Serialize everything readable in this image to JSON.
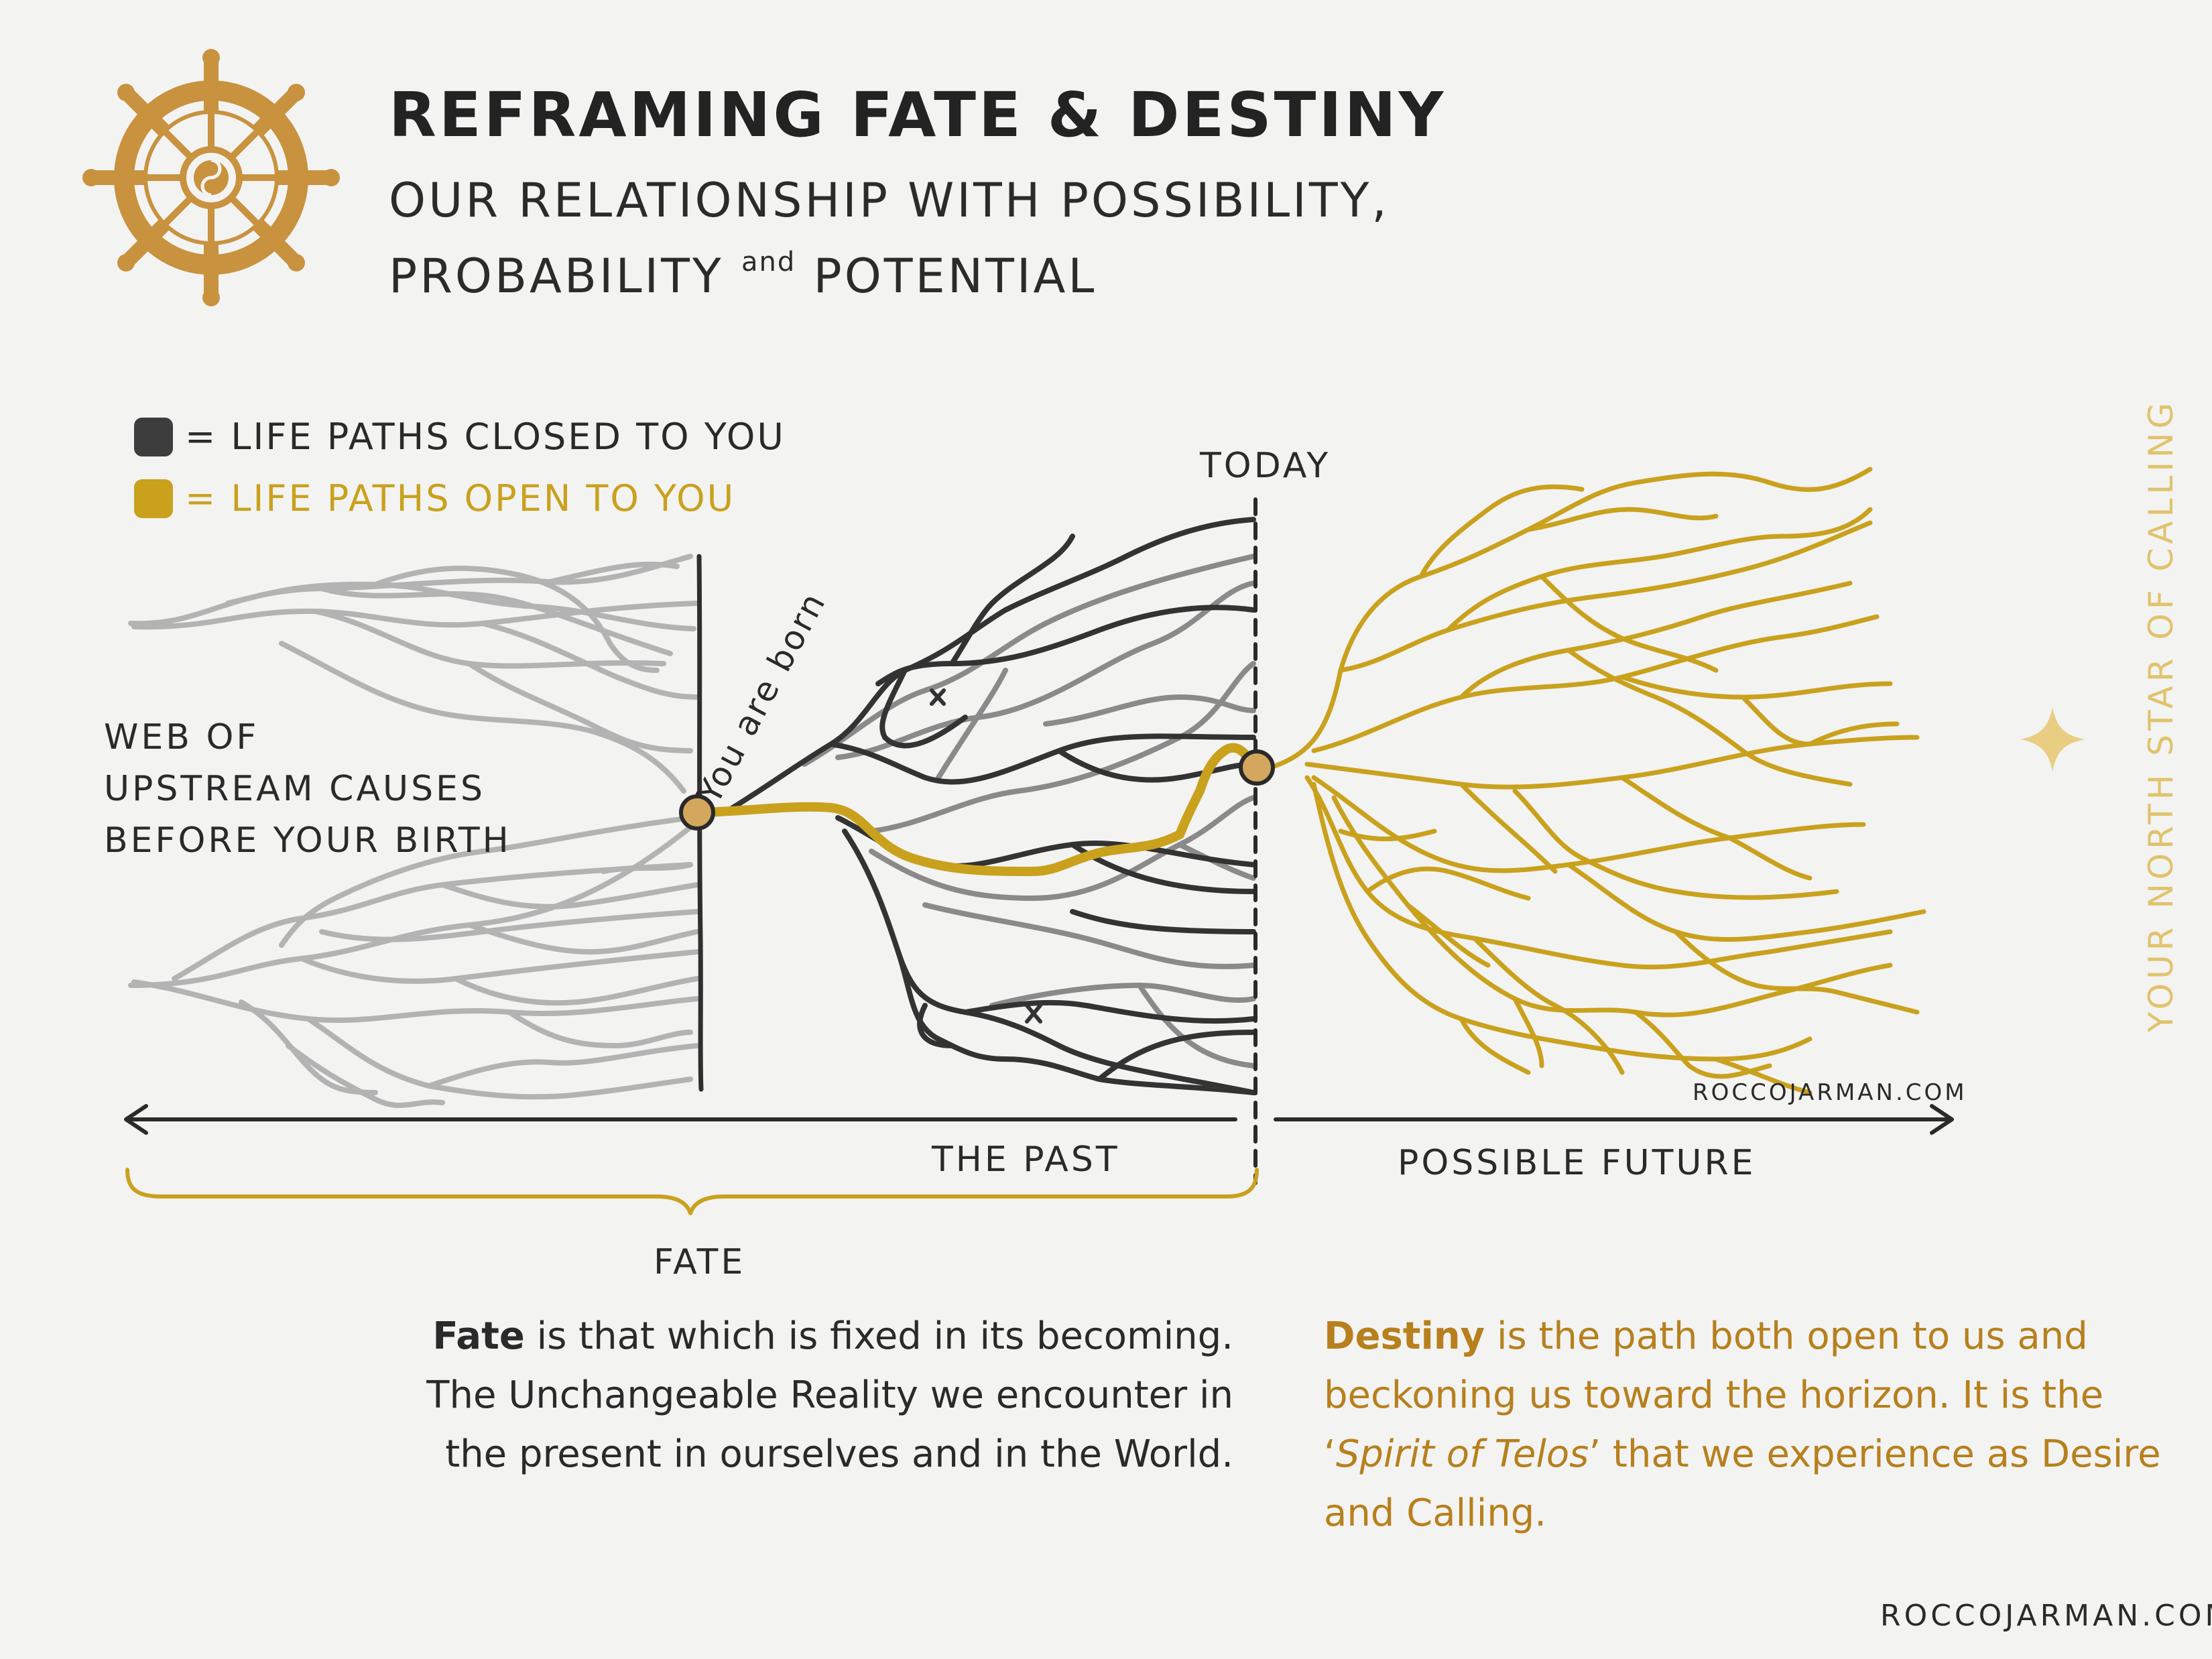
{
  "header": {
    "title": "REFRAMING FATE & DESTINY",
    "subtitle_line1": "OUR RELATIONSHIP WITH POSSIBILITY,",
    "subtitle_line2_a": "PROBABILITY",
    "subtitle_line2_and": "and",
    "subtitle_line2_b": "POTENTIAL"
  },
  "legend": {
    "closed_label": "= LIFE PATHS CLOSED TO YOU",
    "open_label": "= LIFE PATHS OPEN TO YOU"
  },
  "colors": {
    "background": "#f3f3f2",
    "closed": "#3d3d3d",
    "open": "#c9a11d",
    "upstream": "#b3b3b3",
    "past_gray": "#8a8a8a",
    "dark_text": "#2a2a2a",
    "destiny_text": "#b7801d",
    "star": "#e8cd82",
    "wheel": "#c8923f"
  },
  "diagram": {
    "today_label": "TODAY",
    "web_line1": "WEB OF",
    "web_line2": "UPSTREAM CAUSES",
    "web_line3": "BEFORE YOUR BIRTH",
    "born_label": "You are born",
    "past_label": "THE PAST",
    "future_label": "POSSIBLE FUTURE",
    "fate_label": "FATE",
    "north_star_label": "YOUR NORTH STAR OF CALLING",
    "credit_small": "ROCCOJARMAN.COM",
    "closed_marker": "x"
  },
  "fate_text": {
    "term": "Fate",
    "rest": " is that which is fixed in its becoming. The Unchangeable Reality we encounter in the present in ourselves and in the World."
  },
  "destiny_text": {
    "term": "Destiny",
    "part1": " is the path both open to us and beckoning us toward the horizon. It is the ‘",
    "italic": "Spirit of Telos",
    "part2": "’ that we experience as Desire and Calling."
  },
  "footer": {
    "credit": "ROCCOJARMAN.COM"
  }
}
